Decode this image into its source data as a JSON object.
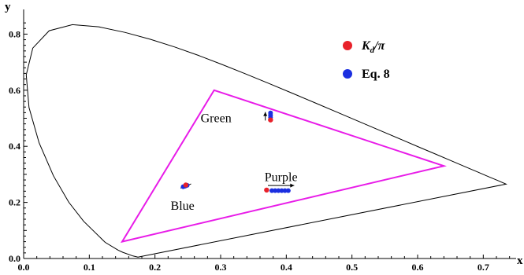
{
  "chart_data": {
    "type": "scatter",
    "xlabel": "x",
    "ylabel": "y",
    "xlim": [
      0.0,
      0.75
    ],
    "ylim": [
      0.0,
      0.86
    ],
    "x_ticks": [
      "0.0",
      "0.1",
      "0.2",
      "0.3",
      "0.4",
      "0.5",
      "0.6",
      "0.7"
    ],
    "y_ticks": [
      "0.0",
      "0.2",
      "0.4",
      "0.6",
      "0.8"
    ],
    "x_tick_values": [
      0.0,
      0.1,
      0.2,
      0.3,
      0.4,
      0.5,
      0.6,
      0.7
    ],
    "y_tick_values": [
      0.0,
      0.2,
      0.4,
      0.6,
      0.8
    ],
    "spectral_locus": [
      [
        0.1741,
        0.005
      ],
      [
        0.1666,
        0.0089
      ],
      [
        0.151,
        0.0221
      ],
      [
        0.144,
        0.0297
      ],
      [
        0.1241,
        0.0578
      ],
      [
        0.0913,
        0.1327
      ],
      [
        0.0687,
        0.2007
      ],
      [
        0.0454,
        0.295
      ],
      [
        0.0235,
        0.4127
      ],
      [
        0.0082,
        0.5384
      ],
      [
        0.0039,
        0.6548
      ],
      [
        0.0139,
        0.7502
      ],
      [
        0.0389,
        0.812
      ],
      [
        0.0743,
        0.8338
      ],
      [
        0.1142,
        0.8262
      ],
      [
        0.1547,
        0.8059
      ],
      [
        0.1929,
        0.7816
      ],
      [
        0.2296,
        0.7543
      ],
      [
        0.2658,
        0.7243
      ],
      [
        0.3016,
        0.6923
      ],
      [
        0.3373,
        0.6589
      ],
      [
        0.3731,
        0.6245
      ],
      [
        0.4087,
        0.5896
      ],
      [
        0.4441,
        0.5547
      ],
      [
        0.4788,
        0.5202
      ],
      [
        0.5125,
        0.4866
      ],
      [
        0.5448,
        0.4544
      ],
      [
        0.5752,
        0.4242
      ],
      [
        0.6029,
        0.3965
      ],
      [
        0.627,
        0.3725
      ],
      [
        0.6482,
        0.3514
      ],
      [
        0.6658,
        0.334
      ],
      [
        0.6801,
        0.3197
      ],
      [
        0.6915,
        0.3083
      ],
      [
        0.7006,
        0.2993
      ],
      [
        0.7079,
        0.292
      ],
      [
        0.714,
        0.2859
      ],
      [
        0.719,
        0.2809
      ],
      [
        0.723,
        0.277
      ],
      [
        0.726,
        0.274
      ],
      [
        0.7347,
        0.2653
      ]
    ],
    "gamut_triangle": {
      "color": "#e81ce8",
      "vertices": [
        [
          0.64,
          0.33
        ],
        [
          0.29,
          0.6
        ],
        [
          0.15,
          0.06
        ]
      ]
    },
    "series": [
      {
        "name": "K_d/π",
        "color": "#e8212a",
        "x": [
          0.247,
          0.376,
          0.37
        ],
        "y": [
          0.262,
          0.494,
          0.244
        ]
      },
      {
        "name": "Eq. 8",
        "color": "#1b2fe0",
        "x": [
          0.243,
          0.246,
          0.249,
          0.376,
          0.376,
          0.376,
          0.378,
          0.383,
          0.388,
          0.393,
          0.398,
          0.403
        ],
        "y": [
          0.256,
          0.258,
          0.261,
          0.503,
          0.511,
          0.519,
          0.242,
          0.242,
          0.242,
          0.242,
          0.242,
          0.242
        ]
      }
    ],
    "arrows": [
      {
        "from": [
          0.255,
          0.266
        ],
        "to": [
          0.239,
          0.251
        ]
      },
      {
        "from": [
          0.368,
          0.492
        ],
        "to": [
          0.368,
          0.522
        ]
      },
      {
        "from": [
          0.372,
          0.26
        ],
        "to": [
          0.412,
          0.26
        ]
      }
    ],
    "annotations": [
      {
        "text": "Green",
        "x": 0.293,
        "y": 0.5
      },
      {
        "text": "Blue",
        "x": 0.242,
        "y": 0.187
      },
      {
        "text": "Purple",
        "x": 0.392,
        "y": 0.29
      }
    ],
    "legend": {
      "position": "top-right",
      "entries": [
        {
          "label_main": "K",
          "label_sub": "d",
          "label_rest": "/π",
          "color": "#e8212a"
        },
        {
          "label_main": "Eq. 8",
          "label_sub": "",
          "label_rest": "",
          "color": "#1b2fe0"
        }
      ]
    },
    "grid": false
  }
}
